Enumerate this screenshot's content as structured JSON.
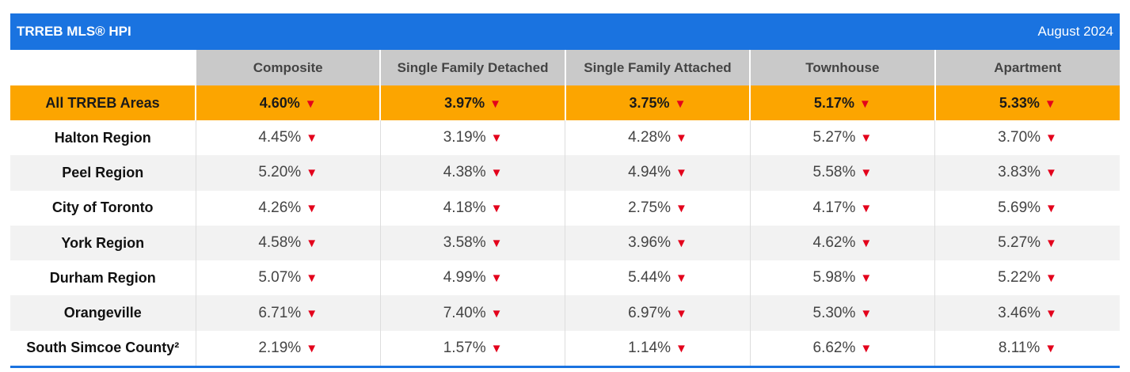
{
  "header": {
    "title": "TRREB MLS® HPI",
    "period": "August 2024"
  },
  "columns": [
    "Composite",
    "Single Family Detached",
    "Single Family Attached",
    "Townhouse",
    "Apartment"
  ],
  "summary": {
    "area": "All TRREB Areas",
    "values": [
      "4.60%",
      "3.97%",
      "3.75%",
      "5.17%",
      "5.33%"
    ]
  },
  "rows": [
    {
      "area": "Halton Region",
      "values": [
        "4.45%",
        "3.19%",
        "4.28%",
        "5.27%",
        "3.70%"
      ]
    },
    {
      "area": "Peel Region",
      "values": [
        "5.20%",
        "4.38%",
        "4.94%",
        "5.58%",
        "3.83%"
      ]
    },
    {
      "area": "City of Toronto",
      "values": [
        "4.26%",
        "4.18%",
        "2.75%",
        "4.17%",
        "5.69%"
      ]
    },
    {
      "area": "York Region",
      "values": [
        "4.58%",
        "3.58%",
        "3.96%",
        "4.62%",
        "5.27%"
      ]
    },
    {
      "area": "Durham Region",
      "values": [
        "5.07%",
        "4.99%",
        "5.44%",
        "5.98%",
        "5.22%"
      ]
    },
    {
      "area": "Orangeville",
      "values": [
        "6.71%",
        "7.40%",
        "6.97%",
        "5.30%",
        "3.46%"
      ]
    },
    {
      "area": "South Simcoe County²",
      "values": [
        "2.19%",
        "1.57%",
        "1.14%",
        "6.62%",
        "8.11%"
      ]
    }
  ],
  "arrow_glyph": "▼",
  "colors": {
    "title_bar": "#1a73e0",
    "highlight_row": "#fca500",
    "header_row": "#c9c9c9",
    "down_arrow": "#e3001b"
  }
}
